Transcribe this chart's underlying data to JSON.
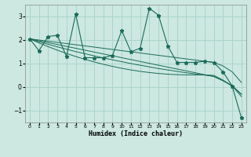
{
  "xlabel": "Humidex (Indice chaleur)",
  "background_color": "#cce8e0",
  "grid_color": "#aad4cc",
  "line_color": "#1a6b5a",
  "x": [
    0,
    1,
    2,
    3,
    4,
    5,
    6,
    7,
    8,
    9,
    10,
    11,
    12,
    13,
    14,
    15,
    16,
    17,
    18,
    19,
    20,
    21,
    22,
    23
  ],
  "series1": [
    2.05,
    1.55,
    2.15,
    2.2,
    1.3,
    3.1,
    1.25,
    1.25,
    1.25,
    1.35,
    2.4,
    1.5,
    1.65,
    3.35,
    3.05,
    1.75,
    1.05,
    1.05,
    1.05,
    1.1,
    1.05,
    0.65,
    0.05,
    -1.3
  ],
  "trend1": [
    2.05,
    2.0,
    1.95,
    1.9,
    1.85,
    1.8,
    1.75,
    1.7,
    1.65,
    1.6,
    1.55,
    1.5,
    1.45,
    1.4,
    1.35,
    1.3,
    1.25,
    1.2,
    1.15,
    1.1,
    1.05,
    0.9,
    0.65,
    0.2
  ],
  "trend2": [
    2.05,
    1.97,
    1.89,
    1.81,
    1.73,
    1.65,
    1.57,
    1.49,
    1.41,
    1.33,
    1.25,
    1.17,
    1.09,
    1.01,
    0.93,
    0.85,
    0.77,
    0.69,
    0.61,
    0.53,
    0.45,
    0.27,
    0.05,
    -0.3
  ],
  "trend3": [
    2.05,
    1.93,
    1.82,
    1.71,
    1.61,
    1.51,
    1.42,
    1.33,
    1.24,
    1.16,
    1.08,
    1.0,
    0.93,
    0.86,
    0.79,
    0.73,
    0.67,
    0.61,
    0.56,
    0.51,
    0.46,
    0.28,
    0.06,
    -0.3
  ],
  "trend4": [
    2.05,
    1.88,
    1.72,
    1.57,
    1.43,
    1.3,
    1.18,
    1.07,
    0.97,
    0.88,
    0.8,
    0.73,
    0.67,
    0.62,
    0.58,
    0.55,
    0.53,
    0.52,
    0.52,
    0.52,
    0.5,
    0.3,
    0.05,
    -0.4
  ],
  "ylim": [
    -1.5,
    3.5
  ],
  "yticks": [
    -1,
    0,
    1,
    2,
    3
  ],
  "xlim": [
    -0.5,
    23.5
  ]
}
